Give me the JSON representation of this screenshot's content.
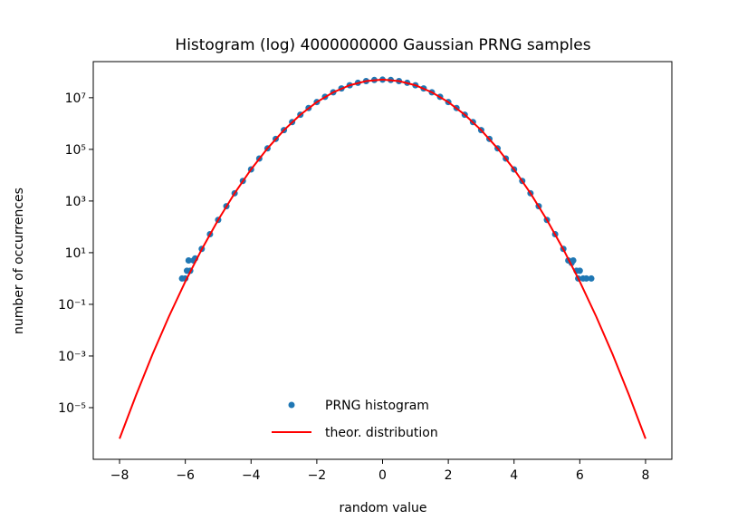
{
  "chart_data": {
    "type": "scatter",
    "title": "Histogram (log) 4000000000 Gaussian PRNG samples",
    "x_label": "random value",
    "y_label": "number of occurrences",
    "xlim": [
      -8.8,
      8.8
    ],
    "ylim": [
      1e-07,
      250000000.0
    ],
    "log_y": true,
    "legend": "lower center",
    "xticks": [
      {
        "value": -8,
        "label": "−8"
      },
      {
        "value": -6,
        "label": "−6"
      },
      {
        "value": -4,
        "label": "−4"
      },
      {
        "value": -2,
        "label": "−2"
      },
      0,
      2,
      4,
      6,
      8
    ],
    "yticks": [
      {
        "value": 1e-05,
        "label": "10⁻⁵"
      },
      {
        "value": 0.001,
        "label": "10⁻³"
      },
      {
        "value": 0.1,
        "label": "10⁻¹"
      },
      {
        "value": 10,
        "label": "10¹"
      },
      {
        "value": 1000,
        "label": "10³"
      },
      {
        "value": 100000,
        "label": "10⁵"
      },
      {
        "value": 10000000,
        "label": "10⁷"
      }
    ],
    "series": [
      {
        "name": "PRNG histogram",
        "color": "#1f77b4",
        "type": "scatter",
        "x": [
          -6.1,
          -6.0,
          -5.95,
          -5.9,
          -5.85,
          -5.75,
          -5.7,
          -5.5,
          -5.25,
          -5.0,
          -4.75,
          -4.5,
          -4.25,
          -4.0,
          -3.75,
          -3.5,
          -3.25,
          -3.0,
          -2.75,
          -2.5,
          -2.25,
          -2.0,
          -1.75,
          -1.5,
          -1.25,
          -1.0,
          -0.75,
          -0.5,
          -0.25,
          0,
          0.25,
          0.5,
          0.75,
          1.0,
          1.25,
          1.5,
          1.75,
          2.0,
          2.25,
          2.5,
          2.75,
          3.0,
          3.25,
          3.5,
          3.75,
          4.0,
          4.25,
          4.5,
          4.75,
          5.0,
          5.25,
          5.5,
          5.65,
          5.75,
          5.8,
          5.9,
          5.95,
          6.0,
          6.1,
          6.2,
          6.35
        ],
        "values": [
          1,
          1,
          2,
          5,
          2,
          5,
          6,
          14,
          52,
          186,
          630,
          2000,
          5980,
          16800,
          44200,
          109000,
          254000,
          555000,
          1140000,
          2200000,
          3980000,
          6770000,
          10800000,
          16200000,
          22900000,
          30300000,
          37700000,
          44100000,
          48500000,
          50000000,
          48500000,
          44100000,
          37700000,
          30300000,
          22900000,
          16200000,
          10800000,
          6770000,
          3980000,
          2200000,
          1140000,
          555000,
          254000,
          109000,
          44200,
          16800,
          5980,
          2000,
          630,
          186,
          52,
          14,
          5,
          4,
          5,
          2,
          1,
          2,
          1,
          1,
          1
        ]
      },
      {
        "name": "theor. distribution",
        "color": "#ff0000",
        "type": "line",
        "x": [
          -8,
          -7.5,
          -7,
          -6.5,
          -6,
          -5.5,
          -5,
          -4.5,
          -4,
          -3.5,
          -3,
          -2.5,
          -2,
          -1.5,
          -1,
          -0.5,
          0,
          0.5,
          1,
          1.5,
          2,
          2.5,
          3,
          3.5,
          4,
          4.5,
          5,
          5.5,
          6,
          6.5,
          7,
          7.5,
          8
        ],
        "values": [
          6.3e-07,
          3e-05,
          0.00115,
          0.0335,
          0.76,
          13.5,
          186,
          2000,
          16800,
          109000,
          555000,
          2200000,
          6770000,
          16200000,
          30300000,
          44100000,
          50000000,
          44100000,
          30300000,
          16200000,
          6770000,
          2200000,
          555000,
          109000,
          16800,
          2000,
          186,
          13.5,
          0.76,
          0.0335,
          0.00115,
          3e-05,
          6.3e-07
        ]
      }
    ]
  }
}
